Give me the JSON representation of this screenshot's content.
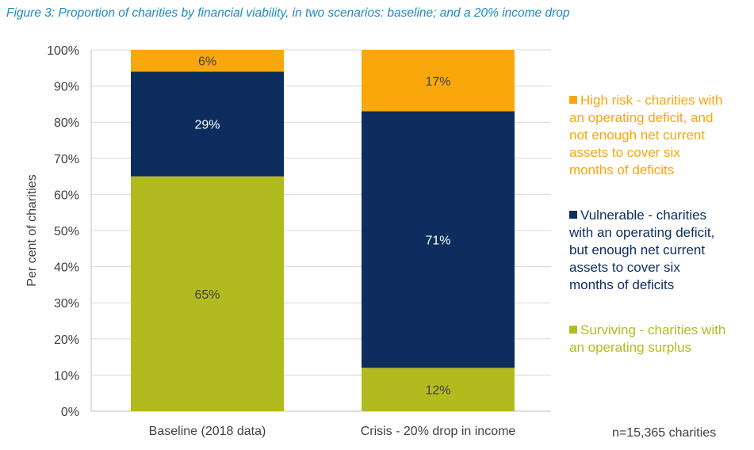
{
  "chart_data": {
    "type": "stacked-bar",
    "title": "Figure 3: Proportion of charities by financial viability, in two scenarios: baseline; and a 20% income drop",
    "ylabel": "Per cent of charities",
    "xlabel": "",
    "ylim": [
      0,
      100
    ],
    "yticks": [
      "0%",
      "10%",
      "20%",
      "30%",
      "40%",
      "50%",
      "60%",
      "70%",
      "80%",
      "90%",
      "100%"
    ],
    "grid": true,
    "legend_position": "right",
    "categories": [
      "Baseline (2018 data)",
      "Crisis - 20% drop in income"
    ],
    "series": [
      {
        "name": "Surviving - charities with an operating surplus",
        "color": "#b2bb1e",
        "values": [
          65,
          12
        ],
        "labels": [
          "65%",
          "12%"
        ]
      },
      {
        "name": "Vulnerable - charities with an operating deficit, but enough net current assets to cover six months of deficits",
        "color": "#0c2d5e",
        "values": [
          29,
          71
        ],
        "labels": [
          "29%",
          "71%"
        ]
      },
      {
        "name": "High risk - charities with an operating deficit, and not enough net current assets to cover six months of deficits",
        "color": "#f9a70b",
        "values": [
          6,
          17
        ],
        "labels": [
          "6%",
          "17%"
        ]
      }
    ],
    "note": "n=15,365 charities"
  }
}
